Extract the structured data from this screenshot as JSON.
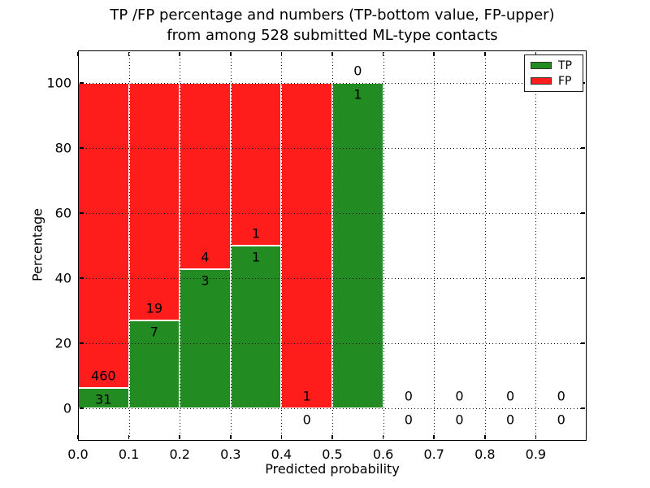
{
  "figure": {
    "title_line1": "TP /FP percentage and numbers (TP-bottom value, FP-upper)",
    "title_line2": "from among 528 submitted ML-type contacts"
  },
  "chart_data": {
    "type": "bar",
    "stacked": true,
    "title": "TP /FP percentage and numbers (TP-bottom value, FP-upper) from among 528 submitted ML-type contacts",
    "xlabel": "Predicted probability",
    "ylabel": "Percentage",
    "xlim": [
      0.0,
      1.0
    ],
    "ylim": [
      -10,
      110
    ],
    "xticks": [
      0.0,
      0.1,
      0.2,
      0.3,
      0.4,
      0.5,
      0.6,
      0.7,
      0.8,
      0.9
    ],
    "xtick_labels": [
      "0.0",
      "0.1",
      "0.2",
      "0.3",
      "0.4",
      "0.5",
      "0.6",
      "0.7",
      "0.8",
      "0.9"
    ],
    "yticks": [
      0,
      20,
      40,
      60,
      80,
      100
    ],
    "ytick_labels": [
      "0",
      "20",
      "40",
      "60",
      "80",
      "100"
    ],
    "grid": true,
    "grid_style": "dotted",
    "legend_position": "upper right",
    "total_contacts": 528,
    "colors": {
      "tp": "#228b22",
      "fp": "#ff1d1c",
      "bar_edge": "#ffffff"
    },
    "bins": [
      {
        "range": [
          0.0,
          0.1
        ],
        "tp": 31,
        "fp": 460,
        "tp_pct": 6.31,
        "fp_pct": 93.69
      },
      {
        "range": [
          0.1,
          0.2
        ],
        "tp": 7,
        "fp": 19,
        "tp_pct": 26.92,
        "fp_pct": 73.08
      },
      {
        "range": [
          0.2,
          0.3
        ],
        "tp": 3,
        "fp": 4,
        "tp_pct": 42.86,
        "fp_pct": 57.14
      },
      {
        "range": [
          0.3,
          0.4
        ],
        "tp": 1,
        "fp": 1,
        "tp_pct": 50.0,
        "fp_pct": 50.0
      },
      {
        "range": [
          0.4,
          0.5
        ],
        "tp": 0,
        "fp": 1,
        "tp_pct": 0.0,
        "fp_pct": 100.0
      },
      {
        "range": [
          0.5,
          0.6
        ],
        "tp": 1,
        "fp": 0,
        "tp_pct": 100.0,
        "fp_pct": 0.0
      },
      {
        "range": [
          0.6,
          0.7
        ],
        "tp": 0,
        "fp": 0,
        "tp_pct": 0.0,
        "fp_pct": 0.0
      },
      {
        "range": [
          0.7,
          0.8
        ],
        "tp": 0,
        "fp": 0,
        "tp_pct": 0.0,
        "fp_pct": 0.0
      },
      {
        "range": [
          0.8,
          0.9
        ],
        "tp": 0,
        "fp": 0,
        "tp_pct": 0.0,
        "fp_pct": 0.0
      },
      {
        "range": [
          0.9,
          1.0
        ],
        "tp": 0,
        "fp": 0,
        "tp_pct": 0.0,
        "fp_pct": 0.0
      }
    ],
    "legend": [
      {
        "label": "TP",
        "color": "#228b22"
      },
      {
        "label": "FP",
        "color": "#ff1d1c"
      }
    ]
  }
}
